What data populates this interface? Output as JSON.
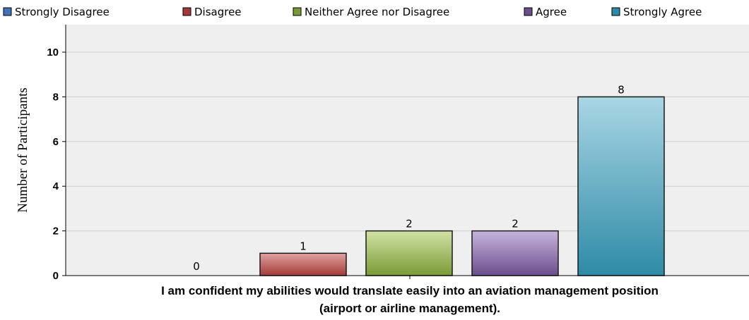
{
  "chart_data": {
    "type": "bar",
    "categories": [
      "Strongly Disagree",
      "Disagree",
      "Neither Agree nor Disagree",
      "Agree",
      "Strongly Agree"
    ],
    "values": [
      null,
      1,
      2,
      2,
      8
    ],
    "data_labels": [
      "",
      "1",
      "2",
      "2",
      "8"
    ],
    "extra_label": "0",
    "xlabel_lines": [
      "I am confident my abilities would translate easily into an aviation management position",
      "(airport or airline management)."
    ],
    "ylabel": "Number of Participants",
    "ylim": [
      0,
      11
    ],
    "yticks": [
      0,
      2,
      4,
      6,
      8,
      10
    ],
    "grid": true,
    "legend_position": "top",
    "colors": [
      "#3f74b8",
      "#a33a37",
      "#7a9a36",
      "#6a4d8c",
      "#2e8aa6"
    ],
    "gradient_top_colors": [
      "#9fbde0",
      "#e0a2a0",
      "#d2e2a6",
      "#c7b5dc",
      "#a9d6e4"
    ]
  }
}
